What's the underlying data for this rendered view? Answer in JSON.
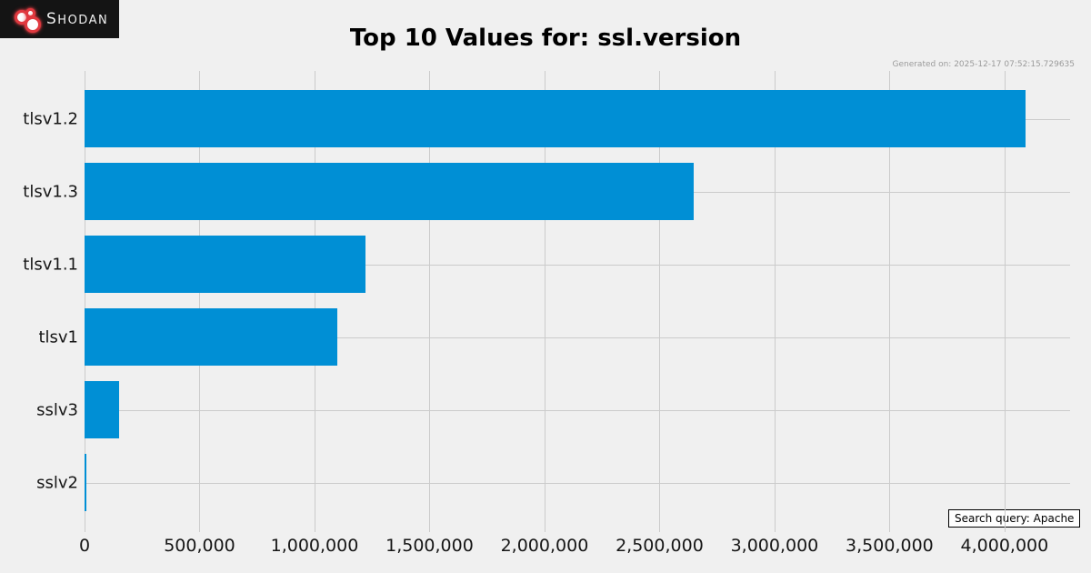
{
  "logo": {
    "brand_cap": "S",
    "brand_rest": "HODAN",
    "bg_color": "#141414",
    "dot_color": "#e0393f"
  },
  "header": {
    "title": "Top 10 Values for: ssl.version",
    "generated_on": "Generated on: 2025-12-17 07:52:15.729635"
  },
  "footer": {
    "search_query_label": "Search query: Apache"
  },
  "chart_data": {
    "type": "bar",
    "orientation": "horizontal",
    "title": "Top 10 Values for: ssl.version",
    "categories": [
      "tlsv1.2",
      "tlsv1.3",
      "tlsv1.1",
      "tlsv1",
      "sslv3",
      "sslv2"
    ],
    "values": [
      4090000,
      2650000,
      1220000,
      1100000,
      150000,
      8000
    ],
    "xlabel": "",
    "ylabel": "",
    "xlim": [
      0,
      4285000
    ],
    "xticks": [
      0,
      500000,
      1000000,
      1500000,
      2000000,
      2500000,
      3000000,
      3500000,
      4000000
    ],
    "xtick_labels": [
      "0",
      "500,000",
      "1,000,000",
      "1,500,000",
      "2,000,000",
      "2,500,000",
      "3,000,000",
      "3,500,000",
      "4,000,000"
    ],
    "grid": true,
    "legend": false,
    "bar_color": "#008fd5",
    "background_color": "#f0f0f0",
    "grid_color": "#cbcbcb"
  }
}
